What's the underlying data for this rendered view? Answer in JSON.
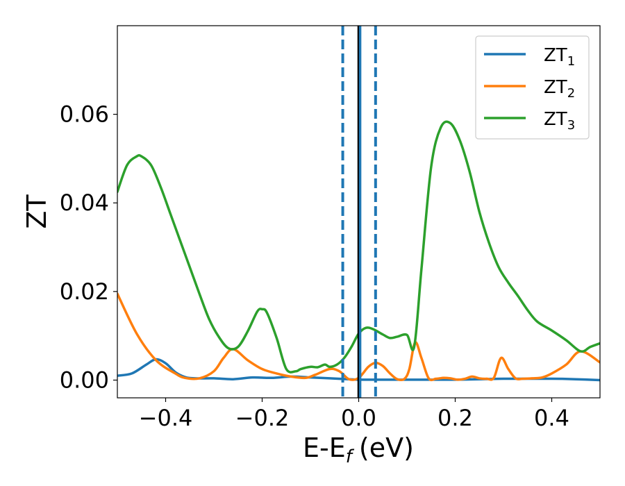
{
  "chart_data": {
    "type": "line",
    "xlabel": "E-E",
    "xlabel_sub": "f",
    "xlabel_unit": "(eV)",
    "ylabel": "ZT",
    "xlim": [
      -0.5,
      0.5
    ],
    "ylim": [
      -0.004,
      0.08
    ],
    "xticks": [
      -0.4,
      -0.2,
      0.0,
      0.2,
      0.4
    ],
    "xtick_labels": [
      "−0.4",
      "−0.2",
      "0.0",
      "0.2",
      "0.4"
    ],
    "yticks": [
      0.0,
      0.02,
      0.04,
      0.06
    ],
    "ytick_labels": [
      "0.00",
      "0.02",
      "0.04",
      "0.06"
    ],
    "grid": false,
    "legend_position": "top-right",
    "vertical_lines": [
      {
        "x": -0.033,
        "style": "dashed",
        "color": "#1f77b4"
      },
      {
        "x": 0.0,
        "style": "solid",
        "color": "#000000"
      },
      {
        "x": 0.003,
        "style": "solid",
        "color": "#1f77b4"
      },
      {
        "x": 0.035,
        "style": "dashed",
        "color": "#1f77b4"
      }
    ],
    "series": [
      {
        "name": "ZT",
        "name_sub": "1",
        "color": "#1f77b4",
        "x": [
          -0.5,
          -0.47,
          -0.44,
          -0.42,
          -0.4,
          -0.38,
          -0.36,
          -0.34,
          -0.3,
          -0.26,
          -0.22,
          -0.18,
          -0.14,
          -0.1,
          -0.06,
          -0.02,
          0.0,
          0.04,
          0.1,
          0.2,
          0.3,
          0.4,
          0.45,
          0.5
        ],
        "values": [
          0.001,
          0.0015,
          0.0035,
          0.0047,
          0.0038,
          0.0018,
          0.0007,
          0.0004,
          0.0004,
          0.0002,
          0.0006,
          0.0005,
          0.0008,
          0.0006,
          0.0004,
          0.0002,
          0.0001,
          0.0001,
          0.0001,
          0.0001,
          0.0003,
          0.0003,
          0.0002,
          0.0
        ]
      },
      {
        "name": "ZT",
        "name_sub": "2",
        "color": "#ff7f0e",
        "x": [
          -0.5,
          -0.46,
          -0.42,
          -0.38,
          -0.36,
          -0.33,
          -0.3,
          -0.28,
          -0.26,
          -0.23,
          -0.2,
          -0.17,
          -0.14,
          -0.11,
          -0.09,
          -0.06,
          -0.04,
          -0.02,
          0.0,
          0.02,
          0.035,
          0.05,
          0.065,
          0.08,
          0.095,
          0.105,
          0.117,
          0.13,
          0.145,
          0.16,
          0.175,
          0.19,
          0.205,
          0.22,
          0.235,
          0.25,
          0.265,
          0.28,
          0.295,
          0.31,
          0.325,
          0.34,
          0.36,
          0.38,
          0.4,
          0.43,
          0.46,
          0.5
        ],
        "values": [
          0.0195,
          0.0105,
          0.0045,
          0.0015,
          0.0005,
          0.0004,
          0.002,
          0.005,
          0.007,
          0.0045,
          0.0025,
          0.0015,
          0.0008,
          0.0005,
          0.0012,
          0.0025,
          0.002,
          0.0002,
          0.0005,
          0.003,
          0.0039,
          0.0032,
          0.0015,
          0.0002,
          0.0003,
          0.0025,
          0.0085,
          0.005,
          0.0004,
          0.0003,
          0.0005,
          0.0004,
          0.0001,
          0.0003,
          0.0008,
          0.0004,
          0.0003,
          0.0005,
          0.005,
          0.0025,
          0.0004,
          0.0003,
          0.0004,
          0.0006,
          0.0015,
          0.0035,
          0.0065,
          0.004
        ]
      },
      {
        "name": "ZT",
        "name_sub": "3",
        "color": "#2ca02c",
        "x": [
          -0.5,
          -0.48,
          -0.46,
          -0.45,
          -0.43,
          -0.41,
          -0.39,
          -0.37,
          -0.35,
          -0.33,
          -0.31,
          -0.29,
          -0.27,
          -0.25,
          -0.23,
          -0.21,
          -0.2,
          -0.19,
          -0.17,
          -0.15,
          -0.13,
          -0.12,
          -0.1,
          -0.085,
          -0.07,
          -0.06,
          -0.045,
          -0.03,
          -0.015,
          0.0,
          0.015,
          0.03,
          0.05,
          0.065,
          0.08,
          0.1,
          0.115,
          0.13,
          0.15,
          0.17,
          0.19,
          0.21,
          0.23,
          0.25,
          0.27,
          0.29,
          0.31,
          0.33,
          0.35,
          0.37,
          0.4,
          0.43,
          0.46,
          0.48,
          0.5
        ],
        "values": [
          0.0425,
          0.0485,
          0.0505,
          0.0505,
          0.0485,
          0.0435,
          0.0375,
          0.0315,
          0.0255,
          0.0195,
          0.0138,
          0.0098,
          0.0072,
          0.0075,
          0.011,
          0.0155,
          0.016,
          0.0152,
          0.0095,
          0.0025,
          0.002,
          0.0025,
          0.003,
          0.0029,
          0.0035,
          0.003,
          0.0035,
          0.005,
          0.0075,
          0.0105,
          0.0118,
          0.0115,
          0.0103,
          0.0095,
          0.0098,
          0.0102,
          0.0075,
          0.025,
          0.048,
          0.057,
          0.058,
          0.054,
          0.047,
          0.038,
          0.031,
          0.0255,
          0.022,
          0.019,
          0.0158,
          0.0132,
          0.0112,
          0.009,
          0.0065,
          0.0075,
          0.0083
        ]
      }
    ]
  }
}
